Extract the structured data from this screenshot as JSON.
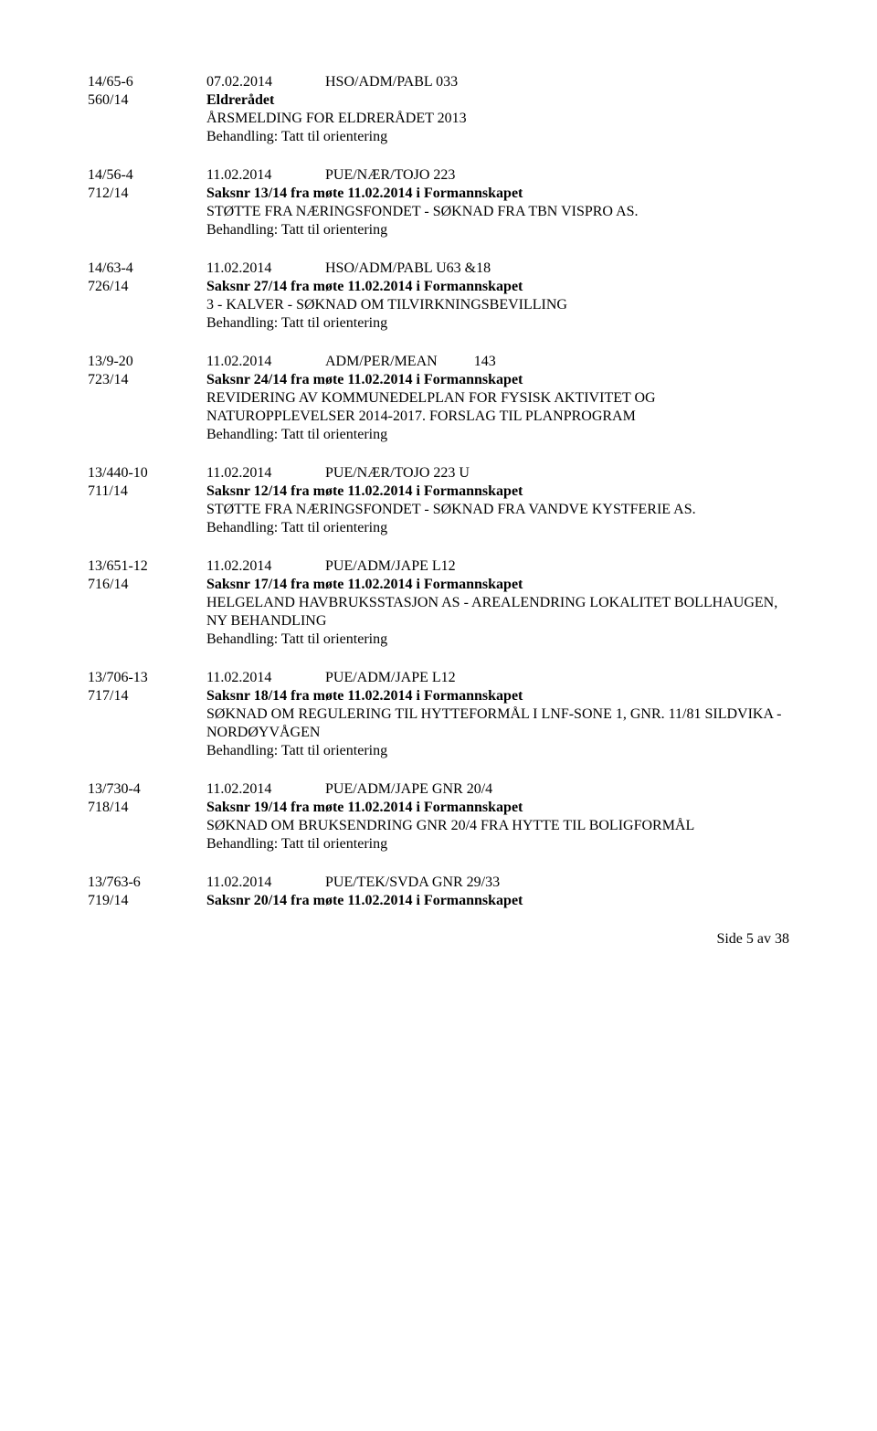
{
  "entries": [
    {
      "left1": "14/65-6",
      "date": "07.02.2014",
      "code": "HSO/ADM/PABL 033",
      "left2": "560/14",
      "title": "Eldrerådet",
      "lines": [
        "ÅRSMELDING FOR ELDRERÅDET 2013",
        "Behandling: Tatt til orientering"
      ]
    },
    {
      "left1": "14/56-4",
      "date": "11.02.2014",
      "code": "PUE/NÆR/TOJO  223",
      "left2": "712/14",
      "title": "Saksnr 13/14 fra møte 11.02.2014 i Formannskapet",
      "lines": [
        "STØTTE FRA NÆRINGSFONDET - SØKNAD FRA TBN VISPRO AS.",
        "Behandling: Tatt til orientering"
      ]
    },
    {
      "left1": "14/63-4",
      "date": "11.02.2014",
      "code": "HSO/ADM/PABL U63 &18",
      "left2": "726/14",
      "title": "Saksnr 27/14 fra møte 11.02.2014 i Formannskapet",
      "lines": [
        "3 - KALVER - SØKNAD OM TILVIRKNINGSBEVILLING",
        "Behandling: Tatt til orientering"
      ]
    },
    {
      "left1": "13/9-20",
      "date": "11.02.2014",
      "code": "ADM/PER/MEAN",
      "code_num": "143",
      "left2": "723/14",
      "title": "Saksnr 24/14 fra møte 11.02.2014 i Formannskapet",
      "lines": [
        "REVIDERING AV KOMMUNEDELPLAN FOR FYSISK AKTIVITET OG NATUROPPLEVELSER 2014-2017. FORSLAG TIL PLANPROGRAM",
        "Behandling: Tatt til orientering"
      ]
    },
    {
      "left1": "13/440-10",
      "date": "11.02.2014",
      "code": "PUE/NÆR/TOJO  223 U",
      "left2": "711/14",
      "title": "Saksnr 12/14 fra møte 11.02.2014 i Formannskapet",
      "lines": [
        "STØTTE FRA NÆRINGSFONDET - SØKNAD FRA VANDVE KYSTFERIE AS.",
        "Behandling: Tatt til orientering"
      ]
    },
    {
      "left1": "13/651-12",
      "date": "11.02.2014",
      "code": "PUE/ADM/JAPE  L12",
      "left2": "716/14",
      "title": "Saksnr 17/14 fra møte 11.02.2014 i Formannskapet",
      "lines": [
        "HELGELAND HAVBRUKSSTASJON AS - AREALENDRING LOKALITET BOLLHAUGEN, NY BEHANDLING",
        "Behandling: Tatt til orientering"
      ]
    },
    {
      "left1": "13/706-13",
      "date": "11.02.2014",
      "code": "PUE/ADM/JAPE  L12",
      "left2": "717/14",
      "title": "Saksnr 18/14 fra møte 11.02.2014 i Formannskapet",
      "lines": [
        "SØKNAD OM REGULERING TIL HYTTEFORMÅL I LNF-SONE 1, GNR. 11/81 SILDVIKA - NORDØYVÅGEN",
        "Behandling: Tatt til orientering"
      ]
    },
    {
      "left1": "13/730-4",
      "date": "11.02.2014",
      "code": "PUE/ADM/JAPE  GNR 20/4",
      "left2": "718/14",
      "title": "Saksnr 19/14 fra møte 11.02.2014 i Formannskapet",
      "lines": [
        "SØKNAD OM BRUKSENDRING GNR 20/4 FRA HYTTE TIL BOLIGFORMÅL",
        "Behandling: Tatt til orientering"
      ]
    },
    {
      "left1": "13/763-6",
      "date": "11.02.2014",
      "code": "PUE/TEK/SVDA  GNR 29/33",
      "left2": "719/14",
      "title": "Saksnr 20/14 fra møte 11.02.2014 i Formannskapet",
      "lines": []
    }
  ],
  "footer": "Side 5 av 38"
}
